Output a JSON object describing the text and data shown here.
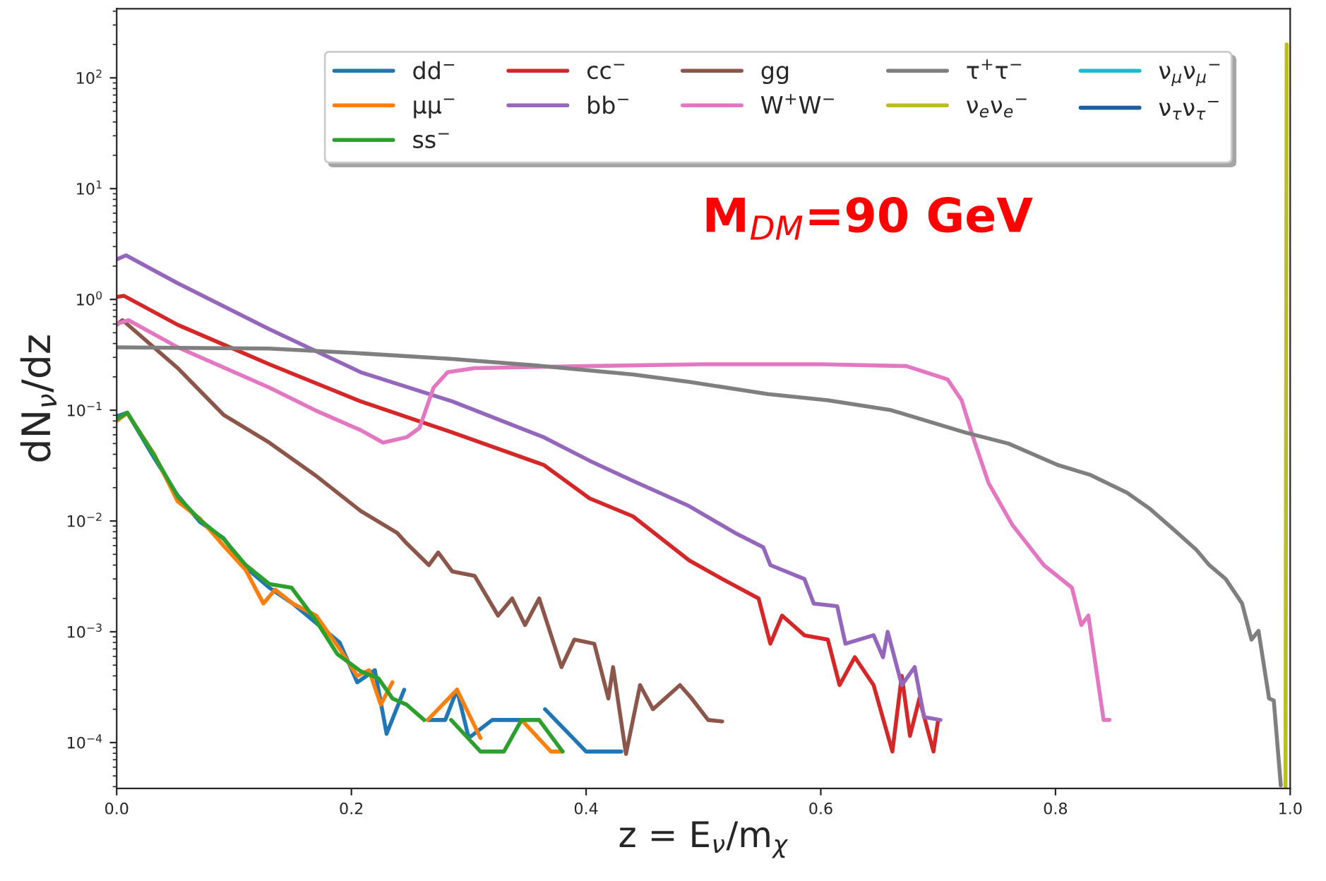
{
  "chart_data": {
    "type": "line",
    "xlabel": "z = E$_{ν}$/m$_{χ}$",
    "ylabel": "dN$_{ν}$/dz",
    "log": "y",
    "legend": "top right",
    "grid": false,
    "xlim": [
      0,
      1
    ],
    "xticks": [
      {
        "value": 0,
        "label": "0.0"
      },
      0.2,
      0.4,
      0.6,
      0.8,
      {
        "value": 1,
        "label": "1.0"
      }
    ],
    "ylim": [
      3.85e-05,
      420
    ],
    "yticks": [
      {
        "value": 0.0001,
        "label": "10$^{−4}$"
      },
      {
        "value": 0.001,
        "label": "10$^{−3}$"
      },
      {
        "value": 0.01,
        "label": "10$^{−2}$"
      },
      {
        "value": 0.1,
        "label": "10$^{−1}$"
      },
      {
        "value": 1,
        "label": "10$^{0}$"
      },
      {
        "value": 10,
        "label": "10$^{1}$"
      },
      {
        "value": 100,
        "label": "10$^{2}$"
      }
    ],
    "annotations": [
      "M$_{DM}$=90 GeV"
    ],
    "series": [
      {
        "name": "dd$^{−}$",
        "color": "#1f77b4",
        "x": [
          0,
          0.009,
          0.032,
          0.052,
          0.071,
          0.091,
          0.11,
          0.13,
          0.15,
          0.17,
          0.19,
          0.205,
          0.22,
          0.23,
          0.245,
          0.255,
          0.265,
          0.28,
          0.29,
          0.3,
          0.32,
          0.345,
          0.355,
          0.365,
          0.4,
          0.43
        ],
        "values": [
          0.088,
          0.095,
          0.037,
          0.017,
          0.0098,
          0.007,
          0.0038,
          0.0025,
          0.0018,
          0.0012,
          0.0008,
          0.00035,
          0.00045,
          0.00012,
          0.0003,
          null,
          0.00016,
          0.00016,
          0.0003,
          0.00011,
          0.00016,
          0.00016,
          null,
          0.0002,
          8.3e-05,
          8.3e-05
        ]
      },
      {
        "name": "μμ$^{−}$",
        "color": "#ff7f0e",
        "x": [
          0,
          0.009,
          0.032,
          0.052,
          0.071,
          0.091,
          0.11,
          0.125,
          0.135,
          0.15,
          0.17,
          0.19,
          0.205,
          0.215,
          0.225,
          0.235,
          0.25,
          0.265,
          0.29,
          0.31,
          0.325,
          0.345,
          0.37,
          0.38
        ],
        "values": [
          0.08,
          0.094,
          0.04,
          0.015,
          0.0105,
          0.006,
          0.0036,
          0.0018,
          0.0024,
          0.0018,
          0.0014,
          0.0007,
          0.0004,
          0.00045,
          0.00022,
          0.00035,
          null,
          0.00016,
          0.0003,
          0.00011,
          null,
          0.00016,
          8.3e-05,
          8.3e-05
        ]
      },
      {
        "name": "ss$^{−}$",
        "color": "#2ca02c",
        "x": [
          0,
          0.009,
          0.032,
          0.052,
          0.071,
          0.091,
          0.11,
          0.13,
          0.149,
          0.169,
          0.188,
          0.208,
          0.223,
          0.235,
          0.247,
          0.262,
          0.27,
          0.285,
          0.31,
          0.33,
          0.345,
          0.36,
          0.38
        ],
        "values": [
          0.083,
          0.095,
          0.039,
          0.0166,
          0.0102,
          0.0069,
          0.004,
          0.0027,
          0.0025,
          0.0013,
          0.00063,
          0.00044,
          0.00038,
          0.00025,
          0.00022,
          0.00016,
          null,
          0.00016,
          8.3e-05,
          8.3e-05,
          0.00016,
          0.00016,
          8.3e-05
        ]
      },
      {
        "name": "cc$^{−}$",
        "color": "#d62728",
        "x": [
          0,
          0.006,
          0.052,
          0.13,
          0.208,
          0.286,
          0.364,
          0.403,
          0.44,
          0.488,
          0.516,
          0.547,
          0.557,
          0.567,
          0.586,
          0.606,
          0.616,
          0.629,
          0.645,
          0.661,
          0.669,
          0.676,
          0.684,
          0.696,
          0.7
        ],
        "values": [
          1.05,
          1.08,
          0.59,
          0.26,
          0.12,
          0.063,
          0.032,
          0.016,
          0.011,
          0.0044,
          0.003,
          0.002,
          0.00078,
          0.0014,
          0.00093,
          0.00085,
          0.00033,
          0.00059,
          0.00033,
          8.3e-05,
          0.0004,
          0.000115,
          0.00025,
          8.3e-05,
          0.00016
        ]
      },
      {
        "name": "bb$^{−}$",
        "color": "#9467bd",
        "x": [
          0,
          0.008,
          0.052,
          0.13,
          0.208,
          0.286,
          0.364,
          0.403,
          0.44,
          0.488,
          0.527,
          0.551,
          0.557,
          0.586,
          0.594,
          0.614,
          0.621,
          0.645,
          0.653,
          0.657,
          0.669,
          0.68,
          0.688,
          0.702
        ],
        "values": [
          2.3,
          2.5,
          1.4,
          0.54,
          0.22,
          0.12,
          0.057,
          0.035,
          0.023,
          0.0136,
          0.0078,
          0.0058,
          0.004,
          0.003,
          0.0018,
          0.0017,
          0.00078,
          0.00093,
          0.00059,
          0.001,
          0.00033,
          0.00048,
          0.00017,
          0.00016
        ]
      },
      {
        "name": "gg",
        "color": "#8c564b",
        "x": [
          0,
          0.005,
          0.052,
          0.091,
          0.13,
          0.169,
          0.208,
          0.239,
          0.247,
          0.266,
          0.274,
          0.286,
          0.305,
          0.325,
          0.337,
          0.348,
          0.36,
          0.379,
          0.39,
          0.407,
          0.419,
          0.423,
          0.434,
          0.446,
          0.457,
          0.48,
          0.49,
          0.504,
          0.516
        ],
        "values": [
          0.59,
          0.65,
          0.24,
          0.091,
          0.051,
          0.026,
          0.0123,
          0.0078,
          0.0063,
          0.004,
          0.0052,
          0.0035,
          0.0032,
          0.0014,
          0.002,
          0.00115,
          0.002,
          0.00048,
          0.00085,
          0.00078,
          0.00025,
          0.00048,
          7.9e-05,
          0.00033,
          0.0002,
          0.00033,
          0.00025,
          0.00016,
          0.000155
        ]
      },
      {
        "name": "W$^{+}$W$^{−}$",
        "color": "#e377c2",
        "x": [
          0,
          0.01,
          0.052,
          0.13,
          0.169,
          0.208,
          0.227,
          0.247,
          0.258,
          0.27,
          0.282,
          0.305,
          0.4,
          0.5,
          0.6,
          0.673,
          0.708,
          0.72,
          0.731,
          0.743,
          0.763,
          0.79,
          0.814,
          0.822,
          0.828,
          0.841,
          0.846
        ],
        "values": [
          0.6,
          0.65,
          0.37,
          0.16,
          0.1,
          0.066,
          0.051,
          0.057,
          0.069,
          0.16,
          0.22,
          0.24,
          0.25,
          0.26,
          0.26,
          0.25,
          0.19,
          0.123,
          0.052,
          0.022,
          0.0093,
          0.004,
          0.0025,
          0.00115,
          0.0014,
          0.00016,
          0.00016
        ]
      },
      {
        "name": "τ$^{+}$τ$^{−}$",
        "color": "#7f7f7f",
        "x": [
          0,
          0.13,
          0.2,
          0.286,
          0.364,
          0.44,
          0.488,
          0.555,
          0.606,
          0.66,
          0.723,
          0.76,
          0.802,
          0.83,
          0.861,
          0.88,
          0.9,
          0.92,
          0.931,
          0.945,
          0.959,
          0.967,
          0.973,
          0.982,
          0.986,
          0.992
        ],
        "values": [
          0.37,
          0.36,
          0.33,
          0.29,
          0.25,
          0.21,
          0.18,
          0.14,
          0.123,
          0.1,
          0.063,
          0.05,
          0.032,
          0.026,
          0.018,
          0.013,
          0.0085,
          0.0055,
          0.004,
          0.003,
          0.0018,
          0.00085,
          0.00102,
          0.00025,
          0.00024,
          4.1e-05
        ]
      },
      {
        "name": "ν$_{e}$ν$_{e}$$^{−}$",
        "color": "#bcbd22",
        "x": [
          0.996,
          0.997
        ],
        "values": [
          3.9e-05,
          200
        ]
      },
      {
        "name": "ν$_{μ}$ν$_{μ}$$^{−}$",
        "color": "#17becf"
      },
      {
        "name": "ν$_{τ}$ν$_{τ}$$^{−}$",
        "color": "#1f5f9f"
      }
    ]
  }
}
